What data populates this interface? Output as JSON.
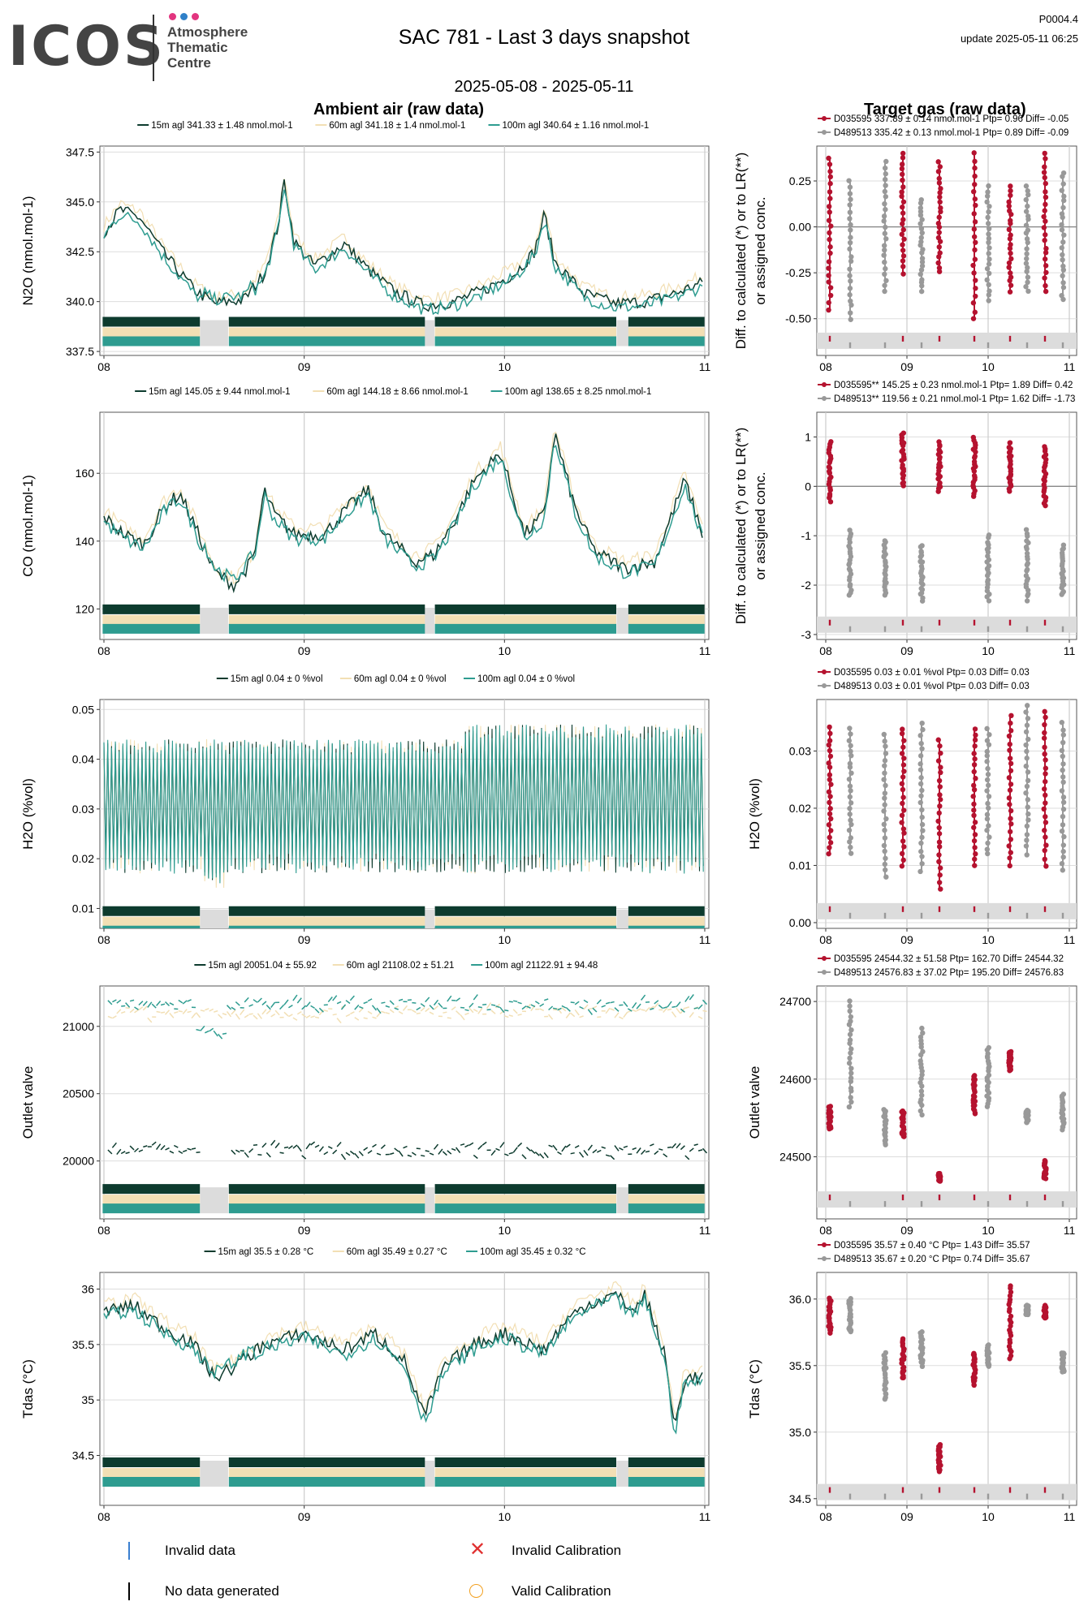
{
  "header": {
    "logo": "ICOS",
    "org_lines": [
      "Atmosphere",
      "Thematic",
      "Centre"
    ],
    "title": "SAC 781 - Last 3 days snapshot",
    "date_range": "2025-05-08 - 2025-05-11",
    "code": "P0004.4",
    "update": "update  2025-05-11 06:25",
    "left_section": "Ambient air (raw data)",
    "right_section": "Target gas (raw data)"
  },
  "colors": {
    "h15": "#0d3b2e",
    "h60": "#f2dfb4",
    "h100": "#2e9c90",
    "tg1": "#b5122f",
    "tg2": "#999999",
    "grid": "#dddddd",
    "invalid": "#3a7fd0",
    "calib_bad": "#e03030",
    "calib_ok": "#f2a020"
  },
  "x_ticks": [
    "08",
    "09",
    "10",
    "11"
  ],
  "chart_data": [
    {
      "type": "line",
      "panel": "ambient",
      "ylabel": "N2O (nmol.mol-1)",
      "yticks": [
        337.5,
        340.0,
        342.5,
        345.0,
        347.5
      ],
      "ylim": [
        337.3,
        347.8
      ],
      "legend": [
        "15m agl 341.33 ± 1.48 nmol.mol-1",
        "60m agl 341.18 ± 1.4 nmol.mol-1",
        "100m agl 340.64 ± 1.16 nmol.mol-1"
      ],
      "curve": [
        [
          0,
          343.5
        ],
        [
          0.08,
          344.6
        ],
        [
          0.18,
          344.2
        ],
        [
          0.3,
          342.4
        ],
        [
          0.45,
          340.6
        ],
        [
          0.55,
          339.9
        ],
        [
          0.7,
          340.1
        ],
        [
          0.8,
          341.4
        ],
        [
          0.87,
          343.8
        ],
        [
          0.9,
          346.0
        ],
        [
          0.95,
          343.0
        ],
        [
          1.05,
          341.8
        ],
        [
          1.2,
          342.9
        ],
        [
          1.32,
          341.6
        ],
        [
          1.45,
          340.5
        ],
        [
          1.6,
          339.8
        ],
        [
          1.75,
          340.0
        ],
        [
          1.9,
          340.6
        ],
        [
          2.05,
          341.4
        ],
        [
          2.15,
          342.5
        ],
        [
          2.2,
          344.4
        ],
        [
          2.25,
          342.0
        ],
        [
          2.4,
          340.4
        ],
        [
          2.55,
          339.9
        ],
        [
          2.7,
          340.0
        ],
        [
          2.85,
          340.4
        ],
        [
          3.0,
          341.0
        ]
      ],
      "bar_ylevel": 338.5
    },
    {
      "type": "line",
      "panel": "ambient",
      "ylabel": "CO (nmol.mol-1)",
      "yticks": [
        120,
        140,
        160
      ],
      "ylim": [
        111,
        178
      ],
      "legend": [
        "15m agl 145.05 ± 9.44 nmol.mol-1",
        "60m agl 144.18 ± 8.66 nmol.mol-1",
        "100m agl 138.65 ± 8.25 nmol.mol-1"
      ],
      "curve": [
        [
          0,
          147
        ],
        [
          0.1,
          142
        ],
        [
          0.2,
          139
        ],
        [
          0.3,
          150
        ],
        [
          0.38,
          154
        ],
        [
          0.45,
          145
        ],
        [
          0.55,
          131
        ],
        [
          0.65,
          127
        ],
        [
          0.75,
          135
        ],
        [
          0.8,
          155
        ],
        [
          0.85,
          148
        ],
        [
          0.95,
          142
        ],
        [
          1.1,
          142
        ],
        [
          1.22,
          150
        ],
        [
          1.32,
          155
        ],
        [
          1.4,
          142
        ],
        [
          1.55,
          134
        ],
        [
          1.65,
          136
        ],
        [
          1.75,
          146
        ],
        [
          1.85,
          158
        ],
        [
          1.98,
          166
        ],
        [
          2.1,
          142
        ],
        [
          2.2,
          148
        ],
        [
          2.25,
          172
        ],
        [
          2.35,
          150
        ],
        [
          2.45,
          137
        ],
        [
          2.6,
          132
        ],
        [
          2.75,
          134
        ],
        [
          2.85,
          150
        ],
        [
          2.9,
          158
        ],
        [
          3.0,
          140
        ]
      ],
      "bar_ylevel": 117
    },
    {
      "type": "line",
      "panel": "ambient",
      "ylabel": "H2O (%vol)",
      "yticks": [
        0.01,
        0.02,
        0.03,
        0.04,
        0.05
      ],
      "ylim": [
        0.006,
        0.052
      ],
      "legend": [
        "15m agl 0.04 ± 0 %vol",
        "60m agl 0.04 ± 0 %vol",
        "100m agl 0.04 ± 0 %vol"
      ],
      "band": [
        0.017,
        0.044
      ],
      "bar_ylevel": 0.0075
    },
    {
      "type": "line",
      "panel": "ambient",
      "ylabel": "Outlet valve",
      "yticks": [
        20000,
        20500,
        21000
      ],
      "ylim": [
        19570,
        21300
      ],
      "legend": [
        "15m agl 20051.04 ± 55.92",
        "60m agl 21108.02 ± 51.21",
        "100m agl 21122.91 ± 94.48"
      ],
      "levels": {
        "h15": 20080,
        "h60": 21100,
        "h100": 21160
      },
      "bar_ylevel": 19720
    },
    {
      "type": "line",
      "panel": "ambient",
      "ylabel": "Tdas (°C)",
      "yticks": [
        34.5,
        35.0,
        35.5,
        36.0
      ],
      "ylim": [
        34.05,
        36.15
      ],
      "legend": [
        "15m agl 35.5 ± 0.28 °C",
        "60m agl 35.49 ± 0.27 °C",
        "100m agl 35.45 ± 0.32 °C"
      ],
      "curve": [
        [
          0,
          35.8
        ],
        [
          0.15,
          35.85
        ],
        [
          0.3,
          35.65
        ],
        [
          0.45,
          35.5
        ],
        [
          0.55,
          35.2
        ],
        [
          0.65,
          35.3
        ],
        [
          0.8,
          35.5
        ],
        [
          1.0,
          35.6
        ],
        [
          1.2,
          35.45
        ],
        [
          1.35,
          35.6
        ],
        [
          1.5,
          35.35
        ],
        [
          1.6,
          34.85
        ],
        [
          1.7,
          35.3
        ],
        [
          1.85,
          35.5
        ],
        [
          2.0,
          35.6
        ],
        [
          2.2,
          35.45
        ],
        [
          2.3,
          35.7
        ],
        [
          2.4,
          35.85
        ],
        [
          2.55,
          35.95
        ],
        [
          2.65,
          35.8
        ],
        [
          2.7,
          35.95
        ],
        [
          2.8,
          35.4
        ],
        [
          2.85,
          34.75
        ],
        [
          2.9,
          35.2
        ],
        [
          3.0,
          35.2
        ]
      ],
      "bar_ylevel": 34.35
    },
    {
      "type": "scatter",
      "panel": "target",
      "ylabel": "Diff. to calculated (*) or to LR(**) or assigned conc.",
      "yticks": [
        -0.5,
        -0.25,
        0.0,
        0.25
      ],
      "ylim": [
        -0.7,
        0.44
      ],
      "zero_line": true,
      "legend": [
        "D035595 337.89 ± 0.14 nmol.mol-1 Ptp= 0.96 Diff= -0.05",
        "D489513 335.42 ± 0.13 nmol.mol-1 Ptp= 0.89 Diff= -0.09"
      ],
      "tg1": [
        [
          0.05,
          -0.45,
          0.38
        ],
        [
          0.95,
          -0.25,
          0.4
        ],
        [
          1.4,
          -0.25,
          0.35
        ],
        [
          1.83,
          -0.5,
          0.4
        ],
        [
          2.27,
          -0.35,
          0.22
        ],
        [
          2.7,
          -0.35,
          0.4
        ]
      ],
      "tg2": [
        [
          0.3,
          -0.5,
          0.25
        ],
        [
          0.73,
          -0.35,
          0.35
        ],
        [
          1.18,
          -0.35,
          0.15
        ],
        [
          2.0,
          -0.4,
          0.22
        ],
        [
          2.48,
          -0.35,
          0.22
        ],
        [
          2.92,
          -0.4,
          0.3
        ]
      ],
      "bar_ylevel": -0.62
    },
    {
      "type": "scatter",
      "panel": "target",
      "ylabel": "Diff. to calculated (*) or to LR(**) or assigned conc.",
      "yticks": [
        -3,
        -2,
        -1,
        0,
        1
      ],
      "ylim": [
        -3.1,
        1.5
      ],
      "zero_line": true,
      "legend": [
        "D035595** 145.25 ± 0.23 nmol.mol-1 Ptp= 1.89 Diff= 0.42",
        "D489513** 119.56 ± 0.21 nmol.mol-1 Ptp= 1.62 Diff= -1.73"
      ],
      "tg1": [
        [
          0.05,
          -0.3,
          0.9
        ],
        [
          0.95,
          0.0,
          1.1
        ],
        [
          1.4,
          -0.1,
          0.9
        ],
        [
          1.83,
          -0.2,
          1.0
        ],
        [
          2.27,
          -0.1,
          0.9
        ],
        [
          2.7,
          -0.4,
          0.8
        ]
      ],
      "tg2": [
        [
          0.3,
          -2.2,
          -0.9
        ],
        [
          0.73,
          -2.2,
          -1.1
        ],
        [
          1.18,
          -2.3,
          -1.2
        ],
        [
          2.0,
          -2.3,
          -1.0
        ],
        [
          2.48,
          -2.3,
          -0.9
        ],
        [
          2.92,
          -2.2,
          -1.2
        ]
      ],
      "bar_ylevel": -2.8
    },
    {
      "type": "scatter",
      "panel": "target",
      "ylabel": "H2O (%vol)",
      "yticks": [
        0.0,
        0.01,
        0.02,
        0.03
      ],
      "ylim": [
        -0.001,
        0.039
      ],
      "legend": [
        "D035595 0.03 ± 0.01 %vol Ptp= 0.03 Diff= 0.03",
        "D489513 0.03 ± 0.01 %vol Ptp= 0.03 Diff= 0.03"
      ],
      "tg1": [
        [
          0.05,
          0.012,
          0.034
        ],
        [
          0.95,
          0.01,
          0.034
        ],
        [
          1.4,
          0.006,
          0.032
        ],
        [
          1.83,
          0.01,
          0.034
        ],
        [
          2.27,
          0.01,
          0.036
        ],
        [
          2.7,
          0.01,
          0.037
        ]
      ],
      "tg2": [
        [
          0.3,
          0.012,
          0.034
        ],
        [
          0.73,
          0.008,
          0.033
        ],
        [
          1.18,
          0.009,
          0.035
        ],
        [
          2.0,
          0.012,
          0.034
        ],
        [
          2.48,
          0.012,
          0.038
        ],
        [
          2.92,
          0.009,
          0.035
        ]
      ],
      "bar_ylevel": 0.002
    },
    {
      "type": "scatter",
      "panel": "target",
      "ylabel": "Outlet valve",
      "yticks": [
        24500,
        24600,
        24700
      ],
      "ylim": [
        24420,
        24720
      ],
      "legend": [
        "D035595 24544.32 ± 51.58 Ptp= 162.70 Diff= 24544.32",
        "D489513 24576.83 ± 37.02 Ptp= 195.20 Diff= 24576.83"
      ],
      "tg1": [
        [
          0.05,
          24535,
          24565
        ],
        [
          0.95,
          24525,
          24560
        ],
        [
          1.4,
          24468,
          24478
        ],
        [
          1.83,
          24555,
          24605
        ],
        [
          2.27,
          24612,
          24635
        ],
        [
          2.7,
          24472,
          24495
        ]
      ],
      "tg2": [
        [
          0.3,
          24565,
          24700
        ],
        [
          0.73,
          24515,
          24560
        ],
        [
          1.18,
          24555,
          24665
        ],
        [
          2.0,
          24565,
          24640
        ],
        [
          2.48,
          24545,
          24560
        ],
        [
          2.92,
          24535,
          24580
        ]
      ],
      "bar_ylevel": 24445
    },
    {
      "type": "scatter",
      "panel": "target",
      "ylabel": "Tdas (°C)",
      "yticks": [
        34.5,
        35.0,
        35.5,
        36.0
      ],
      "ylim": [
        34.45,
        36.2
      ],
      "legend": [
        "D035595 35.57 ± 0.40 °C Ptp= 1.43 Diff= 35.57",
        "D489513 35.67 ± 0.20 °C Ptp= 0.74 Diff= 35.67"
      ],
      "tg1": [
        [
          0.05,
          35.75,
          36.0
        ],
        [
          0.95,
          35.4,
          35.7
        ],
        [
          1.4,
          34.7,
          34.9
        ],
        [
          1.83,
          35.35,
          35.6
        ],
        [
          2.27,
          35.55,
          36.1
        ],
        [
          2.7,
          35.85,
          35.95
        ]
      ],
      "tg2": [
        [
          0.3,
          35.75,
          36.0
        ],
        [
          0.73,
          35.25,
          35.6
        ],
        [
          1.18,
          35.5,
          35.75
        ],
        [
          2.0,
          35.5,
          35.65
        ],
        [
          2.48,
          35.88,
          35.95
        ],
        [
          2.92,
          35.45,
          35.6
        ]
      ],
      "bar_ylevel": 34.55
    }
  ],
  "bottom_legend": {
    "invalid_data": "Invalid data",
    "no_data": "No data generated",
    "invalid_cal": "Invalid Calibration",
    "valid_cal": "Valid Calibration"
  }
}
